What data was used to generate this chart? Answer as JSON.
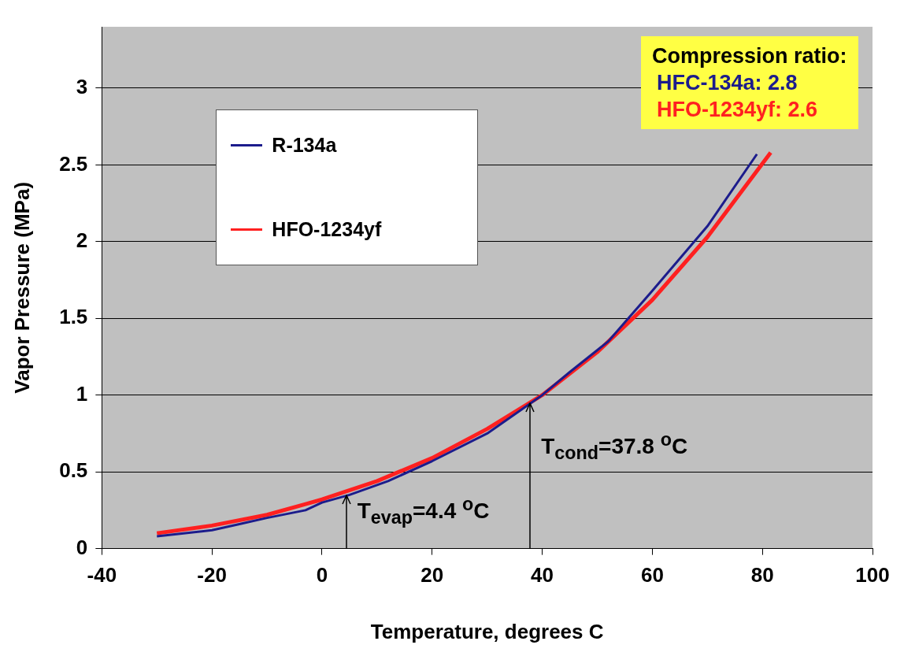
{
  "chart_data": {
    "type": "line",
    "xlabel": "Temperature, degrees C",
    "ylabel": "Vapor Pressure (MPa)",
    "xlim": [
      -40,
      100
    ],
    "xticks": [
      -40,
      -20,
      0,
      20,
      40,
      60,
      80,
      100
    ],
    "ylim": [
      0,
      3.4
    ],
    "yticks": [
      0,
      0.5,
      1,
      1.5,
      2,
      2.5,
      3
    ],
    "grid": "y",
    "legend": "top left",
    "series": [
      {
        "name": "R-134a",
        "color": "#1c1c8c",
        "x": [
          -30,
          -20,
          -15,
          -10,
          -3,
          0,
          5,
          12,
          20,
          30,
          40,
          45,
          52,
          60,
          70,
          79
        ],
        "values": [
          0.08,
          0.12,
          0.16,
          0.2,
          0.25,
          0.3,
          0.35,
          0.44,
          0.57,
          0.75,
          1.0,
          1.15,
          1.35,
          1.68,
          2.1,
          2.57
        ]
      },
      {
        "name": "HFO-1234yf",
        "color": "#ff2020",
        "x": [
          -30,
          -20,
          -10,
          -3,
          0,
          10,
          20,
          30,
          40,
          50,
          60,
          70,
          81.5
        ],
        "values": [
          0.1,
          0.15,
          0.22,
          0.29,
          0.32,
          0.44,
          0.59,
          0.78,
          1.0,
          1.28,
          1.62,
          2.03,
          2.58
        ]
      }
    ],
    "annotations": [
      "Compression ratio:",
      "HFC-134a: 2.8",
      "HFO-1234yf: 2.6",
      {
        "text": "T$_{evap}$=4.4 $^{o}$C",
        "x": 4.4,
        "y": 0.35
      },
      {
        "text": "T$_{cond}$=37.8 $^{o}$C",
        "x": 37.8,
        "y": 0.95
      }
    ]
  }
}
